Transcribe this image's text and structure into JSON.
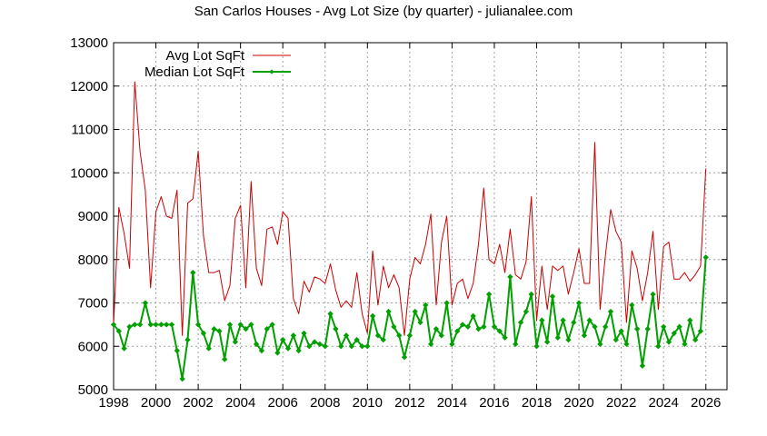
{
  "chart_data": {
    "type": "line",
    "title": "San Carlos Houses - Avg Lot Size (by quarter) - julianalee.com",
    "xlabel": "",
    "ylabel": "",
    "xlim": [
      1998,
      2027
    ],
    "ylim": [
      5000,
      13000
    ],
    "x_ticks": [
      1998,
      2000,
      2002,
      2004,
      2006,
      2008,
      2010,
      2012,
      2014,
      2016,
      2018,
      2020,
      2022,
      2024,
      2026
    ],
    "y_ticks": [
      5000,
      6000,
      7000,
      8000,
      9000,
      10000,
      11000,
      12000,
      13000
    ],
    "grid": true,
    "legend_position": "top-left",
    "series": [
      {
        "name": "Avg Lot SqFt",
        "color": "#cc0000",
        "marker": "none",
        "x": [
          1998.0,
          1998.25,
          1998.5,
          1998.75,
          1999.0,
          1999.25,
          1999.5,
          1999.75,
          2000.0,
          2000.25,
          2000.5,
          2000.75,
          2001.0,
          2001.25,
          2001.5,
          2001.75,
          2002.0,
          2002.25,
          2002.5,
          2002.75,
          2003.0,
          2003.25,
          2003.5,
          2003.75,
          2004.0,
          2004.25,
          2004.5,
          2004.75,
          2005.0,
          2005.25,
          2005.5,
          2005.75,
          2006.0,
          2006.25,
          2006.5,
          2006.75,
          2007.0,
          2007.25,
          2007.5,
          2007.75,
          2008.0,
          2008.25,
          2008.5,
          2008.75,
          2009.0,
          2009.25,
          2009.5,
          2009.75,
          2010.0,
          2010.25,
          2010.5,
          2010.75,
          2011.0,
          2011.25,
          2011.5,
          2011.75,
          2012.0,
          2012.25,
          2012.5,
          2012.75,
          2013.0,
          2013.25,
          2013.5,
          2013.75,
          2014.0,
          2014.25,
          2014.5,
          2014.75,
          2015.0,
          2015.25,
          2015.5,
          2015.75,
          2016.0,
          2016.25,
          2016.5,
          2016.75,
          2017.0,
          2017.25,
          2017.5,
          2017.75,
          2018.0,
          2018.25,
          2018.5,
          2018.75,
          2019.0,
          2019.25,
          2019.5,
          2019.75,
          2020.0,
          2020.25,
          2020.5,
          2020.75,
          2021.0,
          2021.25,
          2021.5,
          2021.75,
          2022.0,
          2022.25,
          2022.5,
          2022.75,
          2023.0,
          2023.25,
          2023.5,
          2023.75,
          2024.0,
          2024.25,
          2024.5,
          2024.75,
          2025.0,
          2025.25,
          2025.5,
          2025.75,
          2026.0
        ],
        "values": [
          6500,
          9200,
          8600,
          7800,
          12100,
          10500,
          9600,
          7350,
          9100,
          9450,
          9000,
          8950,
          9600,
          6250,
          9300,
          9400,
          10500,
          8550,
          7700,
          7700,
          7750,
          7050,
          7400,
          8950,
          9250,
          7350,
          9800,
          7800,
          7400,
          8700,
          8750,
          8350,
          9100,
          8950,
          7100,
          6750,
          7500,
          7250,
          7600,
          7550,
          7450,
          7900,
          7300,
          6900,
          7050,
          6900,
          7700,
          6750,
          6300,
          8200,
          6950,
          7850,
          7350,
          7650,
          7350,
          6250,
          7550,
          8050,
          7900,
          8350,
          9050,
          6950,
          8400,
          9000,
          6950,
          7450,
          7550,
          7100,
          7450,
          8350,
          9650,
          8000,
          7900,
          8350,
          7700,
          8700,
          7650,
          7550,
          7950,
          9450,
          6600,
          7850,
          6850,
          7850,
          7750,
          7850,
          7200,
          7700,
          8250,
          7450,
          7450,
          10700,
          6850,
          8100,
          9150,
          8650,
          8400,
          6550,
          8200,
          7800,
          7050,
          7700,
          8650,
          6850,
          8300,
          8400,
          7550,
          7550,
          7700,
          7500,
          7650,
          7850,
          10100
        ]
      },
      {
        "name": "Median Lot SqFt",
        "color": "#00a000",
        "marker": "diamond",
        "x": [
          1998.0,
          1998.25,
          1998.5,
          1998.75,
          1999.0,
          1999.25,
          1999.5,
          1999.75,
          2000.0,
          2000.25,
          2000.5,
          2000.75,
          2001.0,
          2001.25,
          2001.5,
          2001.75,
          2002.0,
          2002.25,
          2002.5,
          2002.75,
          2003.0,
          2003.25,
          2003.5,
          2003.75,
          2004.0,
          2004.25,
          2004.5,
          2004.75,
          2005.0,
          2005.25,
          2005.5,
          2005.75,
          2006.0,
          2006.25,
          2006.5,
          2006.75,
          2007.0,
          2007.25,
          2007.5,
          2007.75,
          2008.0,
          2008.25,
          2008.5,
          2008.75,
          2009.0,
          2009.25,
          2009.5,
          2009.75,
          2010.0,
          2010.25,
          2010.5,
          2010.75,
          2011.0,
          2011.25,
          2011.5,
          2011.75,
          2012.0,
          2012.25,
          2012.5,
          2012.75,
          2013.0,
          2013.25,
          2013.5,
          2013.75,
          2014.0,
          2014.25,
          2014.5,
          2014.75,
          2015.0,
          2015.25,
          2015.5,
          2015.75,
          2016.0,
          2016.25,
          2016.5,
          2016.75,
          2017.0,
          2017.25,
          2017.5,
          2017.75,
          2018.0,
          2018.25,
          2018.5,
          2018.75,
          2019.0,
          2019.25,
          2019.5,
          2019.75,
          2020.0,
          2020.25,
          2020.5,
          2020.75,
          2021.0,
          2021.25,
          2021.5,
          2021.75,
          2022.0,
          2022.25,
          2022.5,
          2022.75,
          2023.0,
          2023.25,
          2023.5,
          2023.75,
          2024.0,
          2024.25,
          2024.5,
          2024.75,
          2025.0,
          2025.25,
          2025.5,
          2025.75,
          2026.0
        ],
        "values": [
          6500,
          6350,
          5950,
          6450,
          6500,
          6500,
          7000,
          6500,
          6500,
          6500,
          6500,
          6500,
          5900,
          5250,
          6150,
          7700,
          6500,
          6300,
          5950,
          6400,
          6350,
          5700,
          6500,
          6100,
          6500,
          6400,
          6500,
          6050,
          5900,
          6400,
          6500,
          5850,
          6150,
          5950,
          6250,
          5900,
          6300,
          6000,
          6100,
          6050,
          6000,
          6750,
          6400,
          6000,
          6250,
          6000,
          6150,
          6000,
          6000,
          6700,
          6250,
          6150,
          6800,
          6450,
          6250,
          5750,
          6250,
          6800,
          6550,
          6950,
          6050,
          6400,
          6250,
          7000,
          6050,
          6350,
          6500,
          6450,
          6700,
          6400,
          6450,
          7200,
          6450,
          6350,
          6200,
          7600,
          6050,
          6550,
          6800,
          7200,
          6000,
          6600,
          6100,
          7150,
          6200,
          6600,
          6150,
          6550,
          7000,
          6250,
          6600,
          6450,
          6050,
          6450,
          6800,
          6150,
          6350,
          6050,
          6950,
          6400,
          5550,
          6400,
          7200,
          6000,
          6450,
          6100,
          6300,
          6450,
          6050,
          6600,
          6150,
          6350,
          8050
        ]
      }
    ]
  }
}
